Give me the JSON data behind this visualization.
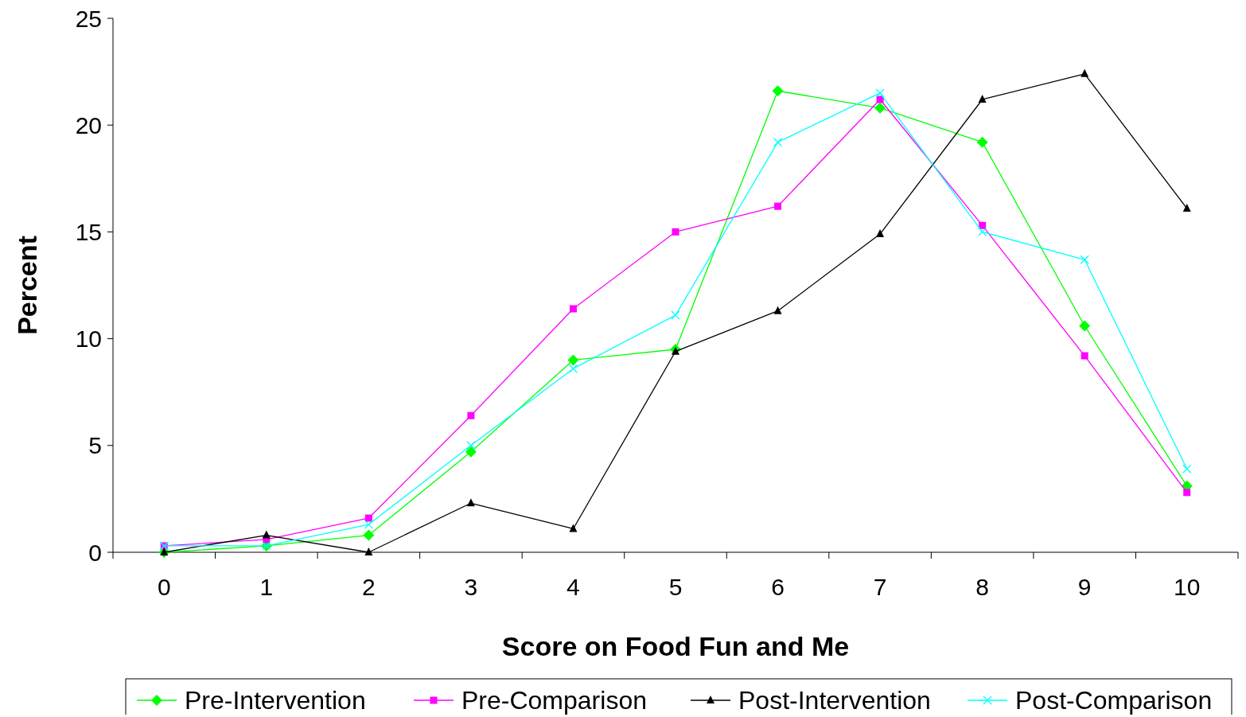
{
  "chart_data": {
    "type": "line",
    "xlabel": "Score on Food Fun and Me",
    "ylabel": "Percent",
    "categories": [
      "0",
      "1",
      "2",
      "3",
      "4",
      "5",
      "6",
      "7",
      "8",
      "9",
      "10"
    ],
    "ylim": [
      0,
      25
    ],
    "yticks": [
      0,
      5,
      10,
      15,
      20,
      25
    ],
    "grid": false,
    "legend": "bottom",
    "series": [
      {
        "name": "Pre-Intervention",
        "color": "#00ff00",
        "marker": "diamond",
        "values": [
          0,
          0.3,
          0.8,
          4.7,
          9.0,
          9.5,
          21.6,
          20.8,
          19.2,
          10.6,
          3.1
        ]
      },
      {
        "name": "Pre-Comparison",
        "color": "#ff00ff",
        "marker": "square",
        "values": [
          0.3,
          0.6,
          1.6,
          6.4,
          11.4,
          15.0,
          16.2,
          21.2,
          15.3,
          9.2,
          2.8
        ]
      },
      {
        "name": "Post-Intervention",
        "color": "#000000",
        "marker": "triangle",
        "values": [
          0,
          0.8,
          0,
          2.3,
          1.1,
          9.4,
          11.3,
          14.9,
          21.2,
          22.4,
          16.1
        ]
      },
      {
        "name": "Post-Comparison",
        "color": "#00ffff",
        "marker": "cross",
        "values": [
          0.3,
          0.3,
          1.3,
          5.0,
          8.6,
          11.1,
          19.2,
          21.5,
          15.0,
          13.7,
          3.9
        ]
      }
    ]
  }
}
